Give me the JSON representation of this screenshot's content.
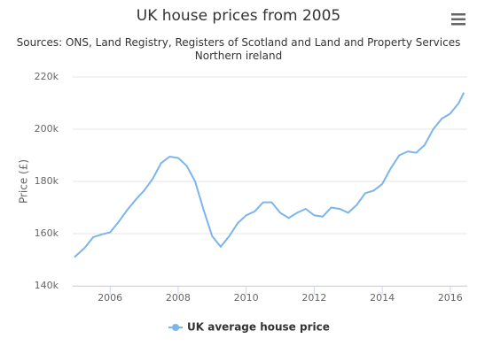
{
  "chart_data": {
    "type": "line",
    "title": "UK house prices from 2005",
    "subtitle": "Sources: ONS, Land Registry, Registers of Scotland and Land and Property Services Northern ireland",
    "y_axis_label": "Price (£)",
    "x": [
      2004.95,
      2005.25,
      2005.5,
      2005.75,
      2006,
      2006.25,
      2006.5,
      2006.75,
      2007,
      2007.25,
      2007.5,
      2007.75,
      2008,
      2008.25,
      2008.5,
      2008.75,
      2009,
      2009.25,
      2009.5,
      2009.75,
      2010,
      2010.25,
      2010.5,
      2010.75,
      2011,
      2011.25,
      2011.5,
      2011.75,
      2012,
      2012.25,
      2012.5,
      2012.75,
      2013,
      2013.25,
      2013.5,
      2013.75,
      2014,
      2014.25,
      2014.5,
      2014.75,
      2015,
      2015.25,
      2015.5,
      2015.75,
      2016,
      2016.25,
      2016.4
    ],
    "series": [
      {
        "name": "UK average house price",
        "color": "#7cb5ec",
        "values": [
          151000,
          154500,
          158600,
          159700,
          160500,
          164500,
          169000,
          173000,
          176500,
          181000,
          187000,
          189500,
          189000,
          186000,
          180000,
          169000,
          159000,
          155000,
          159000,
          164000,
          167000,
          168500,
          172000,
          172000,
          168000,
          166000,
          168000,
          169500,
          167000,
          166500,
          170000,
          169500,
          168000,
          171000,
          175500,
          176500,
          179000,
          185000,
          190000,
          191500,
          191000,
          194000,
          200000,
          204000,
          206000,
          210000,
          214000
        ]
      }
    ],
    "xlim": [
      2004.9,
      2016.5
    ],
    "xticks": [
      2006,
      2008,
      2010,
      2012,
      2014,
      2016
    ],
    "ylim": [
      140000,
      220000
    ],
    "yticks": [
      {
        "value": 140000,
        "label": "140k"
      },
      {
        "value": 160000,
        "label": "160k"
      },
      {
        "value": 180000,
        "label": "180k"
      },
      {
        "value": 200000,
        "label": "200k"
      },
      {
        "value": 220000,
        "label": "220k"
      }
    ],
    "grid": true
  }
}
